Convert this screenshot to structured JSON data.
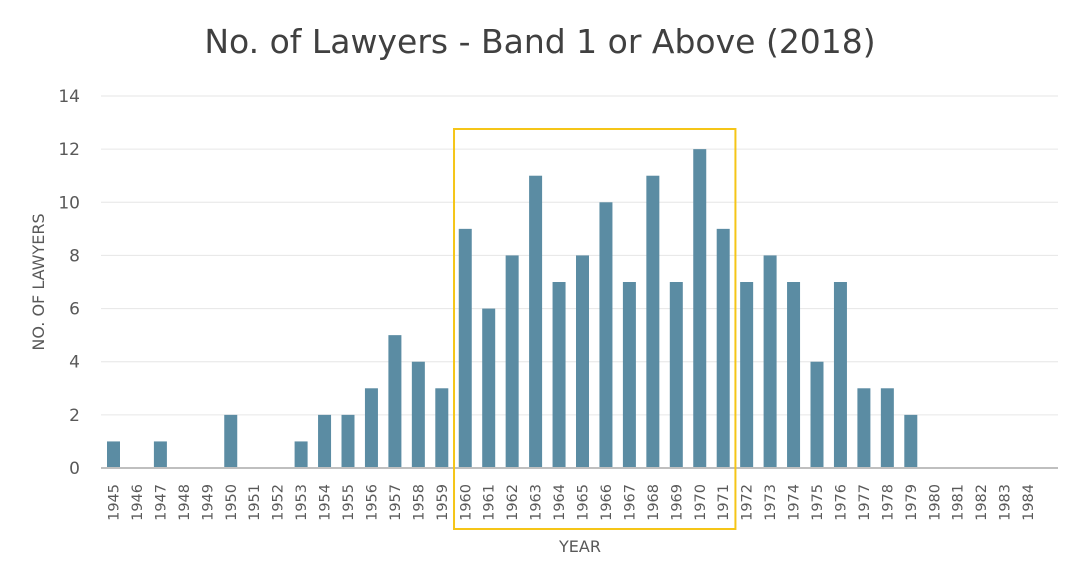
{
  "chart_data": {
    "type": "bar",
    "title": "No. of Lawyers - Band 1 or Above (2018)",
    "xlabel": "YEAR",
    "ylabel": "NO. OF LAWYERS",
    "ylim": [
      0,
      14
    ],
    "yticks": [
      0,
      2,
      4,
      6,
      8,
      10,
      12,
      14
    ],
    "grid": true,
    "bar_color": "#5b8ca3",
    "highlight_color": "#f5c518",
    "highlight_range": [
      "1960",
      "1971"
    ],
    "categories": [
      "1945",
      "1946",
      "1947",
      "1948",
      "1949",
      "1950",
      "1951",
      "1952",
      "1953",
      "1954",
      "1955",
      "1956",
      "1957",
      "1958",
      "1959",
      "1960",
      "1961",
      "1962",
      "1963",
      "1964",
      "1965",
      "1966",
      "1967",
      "1968",
      "1969",
      "1970",
      "1971",
      "1972",
      "1973",
      "1974",
      "1975",
      "1976",
      "1977",
      "1978",
      "1979",
      "1980",
      "1981",
      "1982",
      "1983",
      "1984"
    ],
    "values": [
      1,
      0,
      1,
      0,
      0,
      2,
      0,
      0,
      1,
      2,
      2,
      3,
      5,
      4,
      3,
      9,
      6,
      8,
      11,
      7,
      8,
      10,
      7,
      11,
      7,
      12,
      9,
      7,
      8,
      7,
      4,
      7,
      3,
      3,
      2,
      0,
      0,
      0,
      0,
      0
    ]
  }
}
